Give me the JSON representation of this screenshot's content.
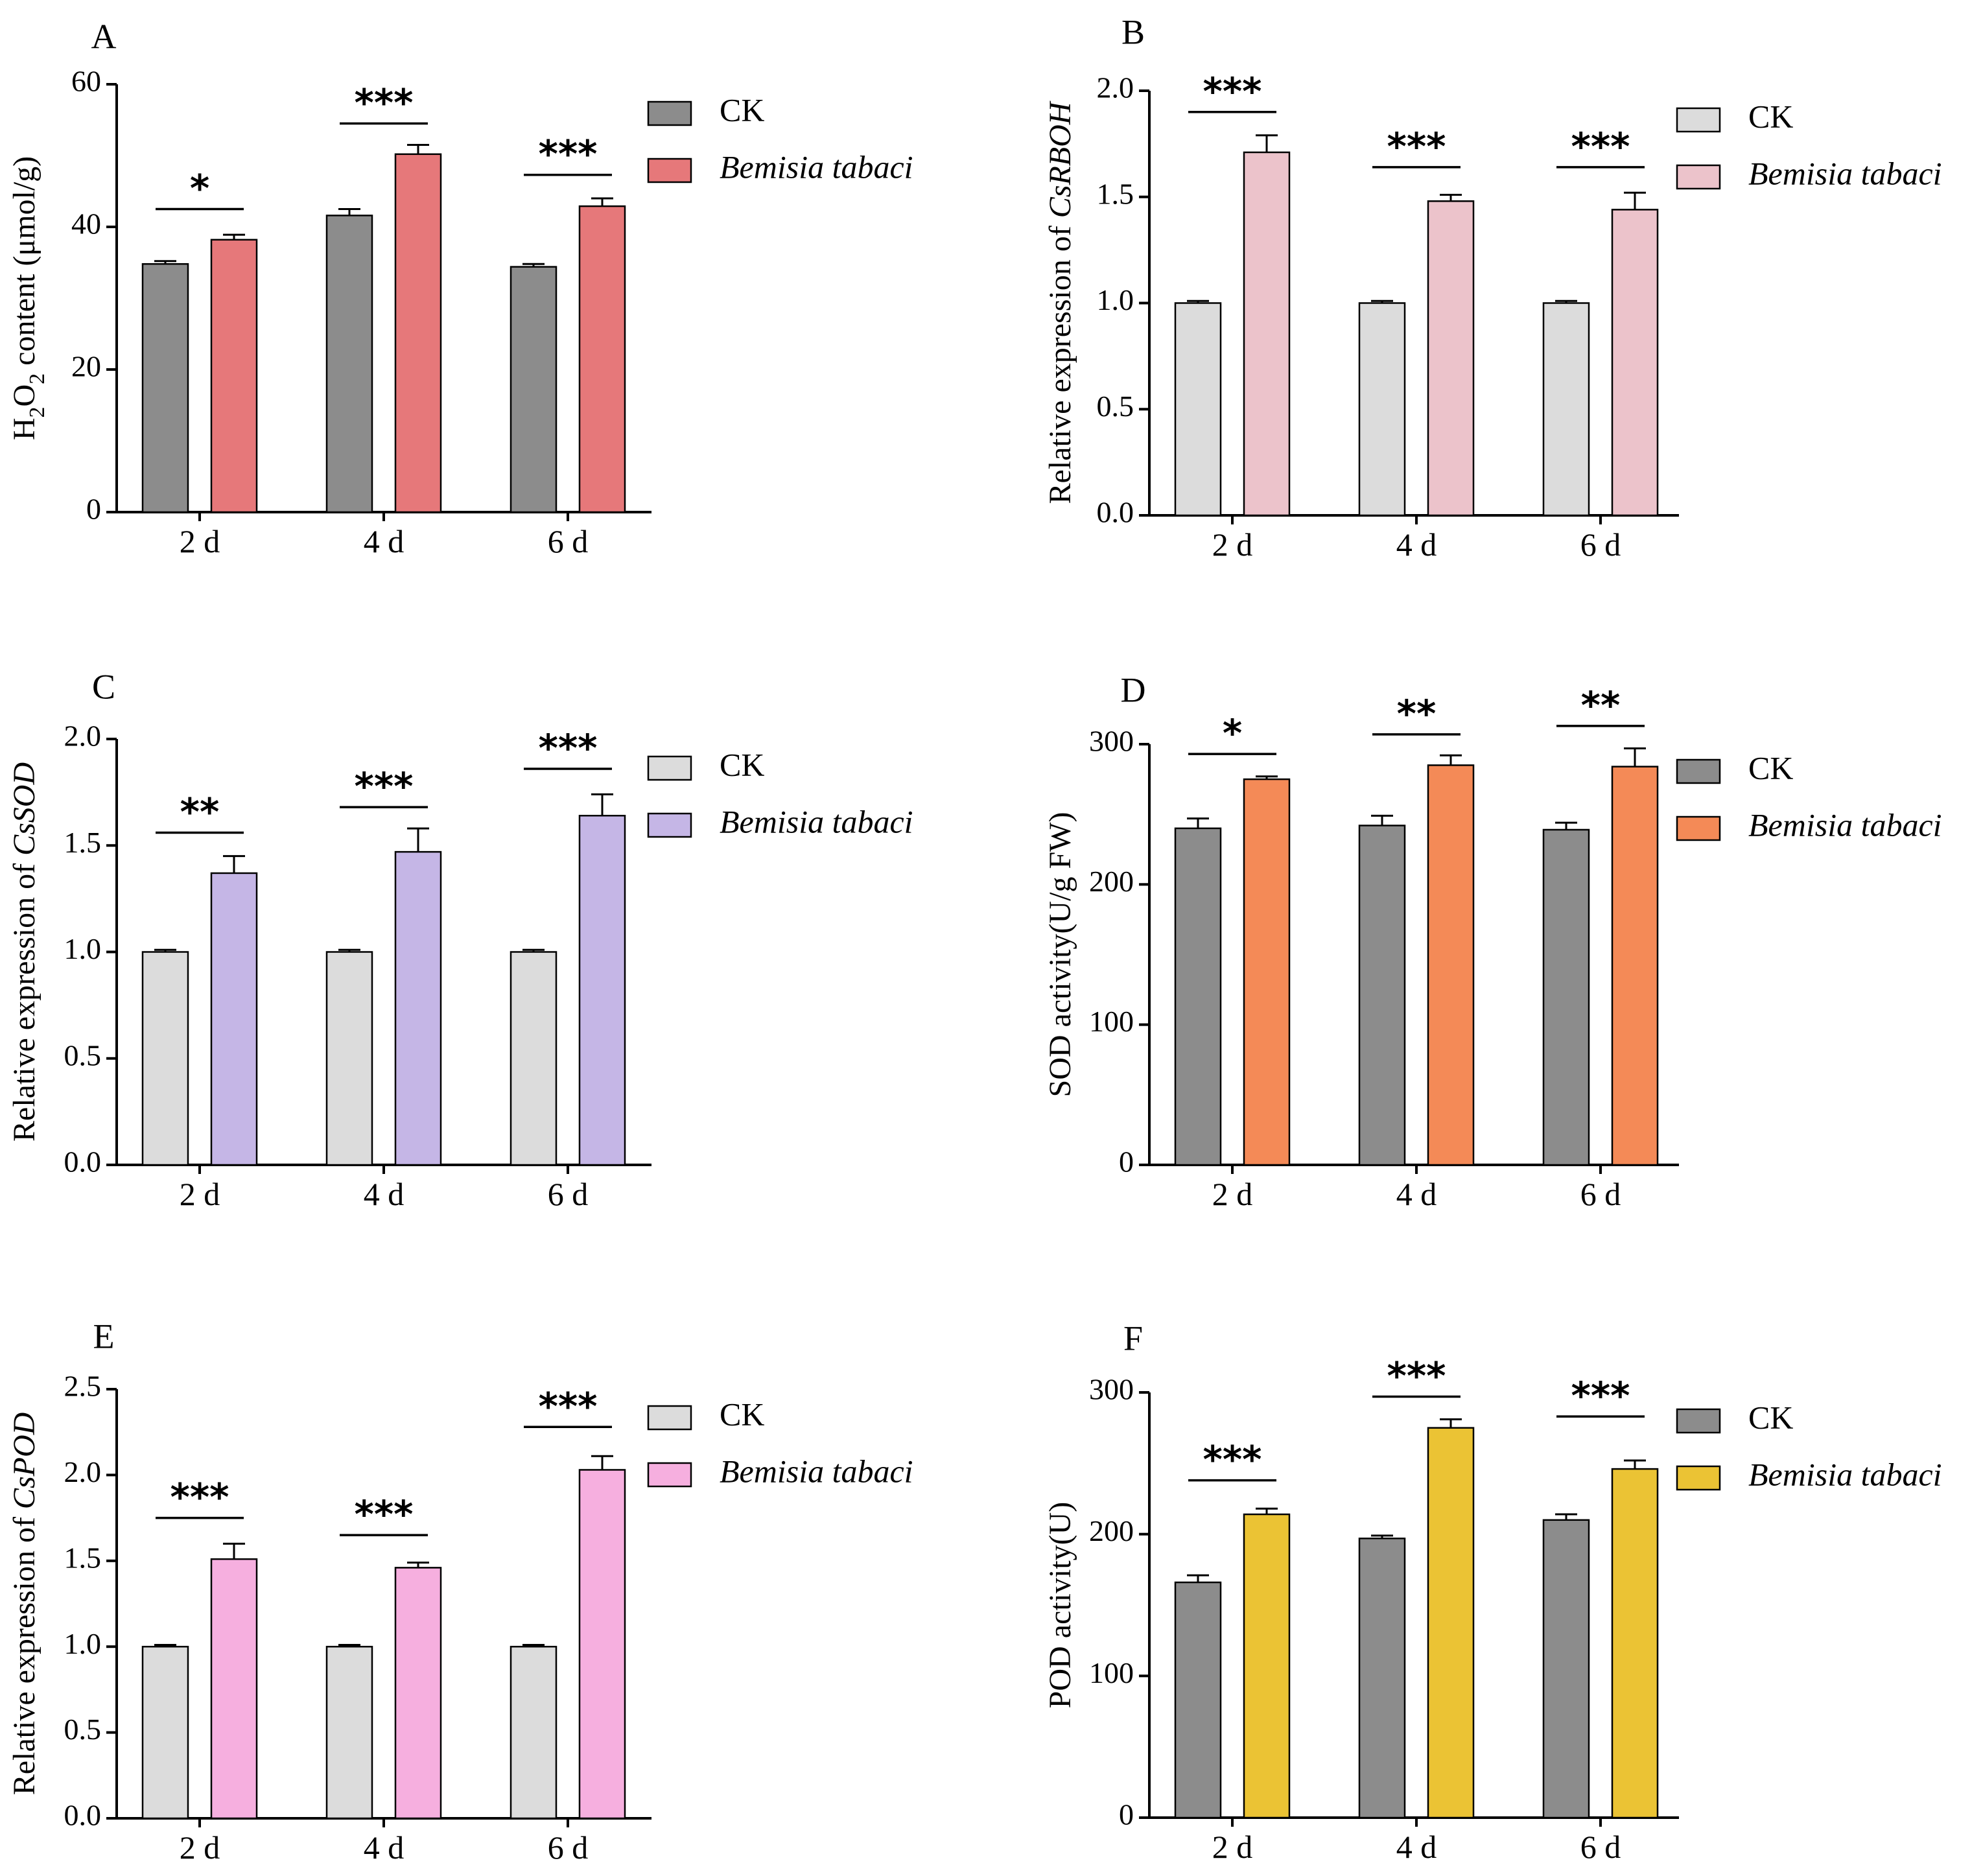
{
  "chart_data": [
    {
      "id": "A",
      "type": "bar",
      "panel_label": "A",
      "ylabel_parts": [
        {
          "t": "H"
        },
        {
          "t": "2",
          "sub": true
        },
        {
          "t": "O"
        },
        {
          "t": "2",
          "sub": true
        },
        {
          "t": " content (μmol/g)"
        }
      ],
      "ylim": [
        0,
        60
      ],
      "yticks": [
        "0",
        "20",
        "40",
        "60"
      ],
      "ytick_values": [
        0,
        20,
        40,
        60
      ],
      "categories": [
        "2 d",
        "4 d",
        "6 d"
      ],
      "series": [
        {
          "name": "CK",
          "italic": false,
          "color": "#8c8c8c",
          "values": [
            34.8,
            41.6,
            34.4
          ],
          "errors": [
            0.4,
            0.9,
            0.4
          ]
        },
        {
          "name": "Bemisia tabaci",
          "italic": true,
          "color": "#e6787a",
          "values": [
            38.2,
            50.2,
            42.9
          ],
          "errors": [
            0.7,
            1.3,
            1.1
          ]
        }
      ],
      "significance": [
        "*",
        "***",
        "***"
      ],
      "sig_heights": [
        42.5,
        54.5,
        47.3
      ]
    },
    {
      "id": "B",
      "type": "bar",
      "panel_label": "B",
      "ylabel_parts": [
        {
          "t": "Relative expression of "
        },
        {
          "t": "CsRBOH",
          "italic": true
        }
      ],
      "ylim": [
        0,
        2.0
      ],
      "yticks": [
        "0.0",
        "0.5",
        "1.0",
        "1.5",
        "2.0"
      ],
      "ytick_values": [
        0,
        0.5,
        1.0,
        1.5,
        2.0
      ],
      "categories": [
        "2 d",
        "4 d",
        "6 d"
      ],
      "series": [
        {
          "name": "CK",
          "italic": false,
          "color": "#dcdcdc",
          "values": [
            1.0,
            1.0,
            1.0
          ],
          "errors": [
            0.01,
            0.01,
            0.01
          ]
        },
        {
          "name": "Bemisia tabaci",
          "italic": true,
          "color": "#ecc3cb",
          "values": [
            1.71,
            1.48,
            1.44
          ],
          "errors": [
            0.08,
            0.03,
            0.08
          ]
        }
      ],
      "significance": [
        "***",
        "***",
        "***"
      ],
      "sig_heights": [
        1.9,
        1.64,
        1.64
      ]
    },
    {
      "id": "C",
      "type": "bar",
      "panel_label": "C",
      "ylabel_parts": [
        {
          "t": "Relative expression of "
        },
        {
          "t": "CsSOD",
          "italic": true
        }
      ],
      "ylim": [
        0,
        2.0
      ],
      "yticks": [
        "0.0",
        "0.5",
        "1.0",
        "1.5",
        "2.0"
      ],
      "ytick_values": [
        0,
        0.5,
        1.0,
        1.5,
        2.0
      ],
      "categories": [
        "2 d",
        "4 d",
        "6 d"
      ],
      "series": [
        {
          "name": "CK",
          "italic": false,
          "color": "#dcdcdc",
          "values": [
            1.0,
            1.0,
            1.0
          ],
          "errors": [
            0.01,
            0.01,
            0.01
          ]
        },
        {
          "name": "Bemisia tabaci",
          "italic": true,
          "color": "#c5b6e6",
          "values": [
            1.37,
            1.47,
            1.64
          ],
          "errors": [
            0.08,
            0.11,
            0.1
          ]
        }
      ],
      "significance": [
        "**",
        "***",
        "***"
      ],
      "sig_heights": [
        1.56,
        1.68,
        1.86
      ]
    },
    {
      "id": "D",
      "type": "bar",
      "panel_label": "D",
      "ylabel_parts": [
        {
          "t": "SOD activity(U/g FW)"
        }
      ],
      "ylim": [
        0,
        300
      ],
      "yticks": [
        "0",
        "100",
        "200",
        "300"
      ],
      "ytick_values": [
        0,
        100,
        200,
        300
      ],
      "categories": [
        "2 d",
        "4 d",
        "6 d"
      ],
      "series": [
        {
          "name": "CK",
          "italic": false,
          "color": "#8c8c8c",
          "values": [
            240,
            242,
            239
          ],
          "errors": [
            7,
            7,
            5
          ]
        },
        {
          "name": "Bemisia tabaci",
          "italic": true,
          "color": "#f48a57",
          "values": [
            275,
            285,
            284
          ],
          "errors": [
            2,
            7,
            13
          ]
        }
      ],
      "significance": [
        "*",
        "**",
        "**"
      ],
      "sig_heights": [
        293,
        307,
        313
      ]
    },
    {
      "id": "E",
      "type": "bar",
      "panel_label": "E",
      "ylabel_parts": [
        {
          "t": "Relative expression of "
        },
        {
          "t": "CsPOD",
          "italic": true
        }
      ],
      "ylim": [
        0,
        2.5
      ],
      "yticks": [
        "0.0",
        "0.5",
        "1.0",
        "1.5",
        "2.0",
        "2.5"
      ],
      "ytick_values": [
        0,
        0.5,
        1.0,
        1.5,
        2.0,
        2.5
      ],
      "categories": [
        "2 d",
        "4 d",
        "6 d"
      ],
      "series": [
        {
          "name": "CK",
          "italic": false,
          "color": "#dcdcdc",
          "values": [
            1.0,
            1.0,
            1.0
          ],
          "errors": [
            0.01,
            0.01,
            0.01
          ]
        },
        {
          "name": "Bemisia tabaci",
          "italic": true,
          "color": "#f6afdf",
          "values": [
            1.51,
            1.46,
            2.03
          ],
          "errors": [
            0.09,
            0.03,
            0.08
          ]
        }
      ],
      "significance": [
        "***",
        "***",
        "***"
      ],
      "sig_heights": [
        1.75,
        1.65,
        2.28
      ]
    },
    {
      "id": "F",
      "type": "bar",
      "panel_label": "F",
      "ylabel_parts": [
        {
          "t": "POD activity(U)"
        }
      ],
      "ylim": [
        0,
        300
      ],
      "yticks": [
        "0",
        "100",
        "200",
        "300"
      ],
      "ytick_values": [
        0,
        100,
        200,
        300
      ],
      "categories": [
        "2 d",
        "4 d",
        "6 d"
      ],
      "series": [
        {
          "name": "CK",
          "italic": false,
          "color": "#8c8c8c",
          "values": [
            166,
            197,
            210
          ],
          "errors": [
            5,
            2,
            4
          ]
        },
        {
          "name": "Bemisia tabaci",
          "italic": true,
          "color": "#ebc334",
          "values": [
            214,
            275,
            246
          ],
          "errors": [
            4,
            6,
            6
          ]
        }
      ],
      "significance": [
        "***",
        "***",
        "***"
      ],
      "sig_heights": [
        238,
        297,
        283
      ]
    }
  ]
}
